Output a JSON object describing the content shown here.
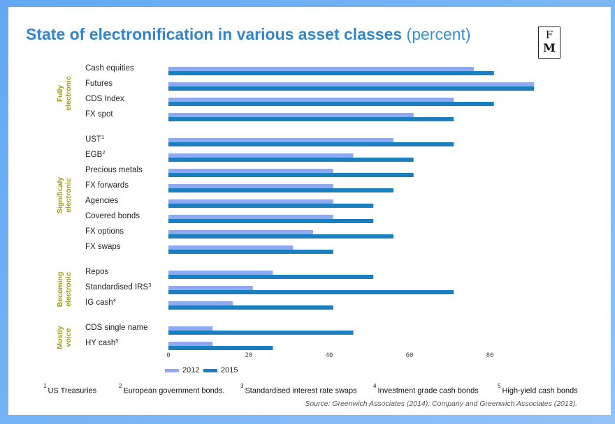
{
  "title": {
    "main": "State of electronification in various asset classes",
    "sub": "(percent)"
  },
  "logo": {
    "line1": "F",
    "line2": "M"
  },
  "chart_data": {
    "type": "bar",
    "orientation": "horizontal",
    "xlim": [
      0,
      90
    ],
    "xticks": [
      0,
      20,
      40,
      60,
      80
    ],
    "series": [
      {
        "name": "2012",
        "color": "#8fa9f0"
      },
      {
        "name": "2015",
        "color": "#1a7fc1"
      }
    ],
    "groups": [
      {
        "label": "Fully\nelectronic",
        "items": [
          {
            "category": "Cash equities",
            "values": [
              76,
              81
            ]
          },
          {
            "category": "Futures",
            "values": [
              91,
              91
            ]
          },
          {
            "category": "CDS Index",
            "values": [
              71,
              81
            ]
          },
          {
            "category": "FX spot",
            "values": [
              61,
              71
            ]
          }
        ]
      },
      {
        "label": "Significaly\nelectronic",
        "items": [
          {
            "category": "UST",
            "sup": "1",
            "values": [
              56,
              71
            ]
          },
          {
            "category": "EGB",
            "sup": "2",
            "values": [
              46,
              61
            ]
          },
          {
            "category": "Precious metals",
            "values": [
              41,
              61
            ]
          },
          {
            "category": "FX forwards",
            "values": [
              41,
              56
            ]
          },
          {
            "category": "Agencies",
            "values": [
              41,
              51
            ]
          },
          {
            "category": "Covered bonds",
            "values": [
              41,
              51
            ]
          },
          {
            "category": "FX options",
            "values": [
              36,
              56
            ]
          },
          {
            "category": "FX swaps",
            "values": [
              31,
              41
            ]
          }
        ]
      },
      {
        "label": "Becoming\nelectronic",
        "items": [
          {
            "category": "Repos",
            "values": [
              26,
              51
            ]
          },
          {
            "category": "Standardised IRS",
            "sup": "3",
            "values": [
              21,
              71
            ]
          },
          {
            "category": "IG cash",
            "sup": "4",
            "values": [
              16,
              41
            ]
          }
        ]
      },
      {
        "label": "Mostly\nvoice",
        "items": [
          {
            "category": "CDS single name",
            "values": [
              11,
              46
            ]
          },
          {
            "category": "HY cash",
            "sup": "5",
            "values": [
              11,
              26
            ]
          }
        ]
      }
    ]
  },
  "footnotes": [
    {
      "num": "1",
      "text": "US Treasuries"
    },
    {
      "num": "2",
      "text": "European government bonds."
    },
    {
      "num": "3",
      "text": "Standardised interest rate swaps"
    },
    {
      "num": "4",
      "text": "Investment grade cash bonds"
    },
    {
      "num": "5",
      "text": "High-yield cash bonds"
    }
  ],
  "source": "Source: Greenwich Associates (2014); Company and Greenwich Associates (2013)."
}
